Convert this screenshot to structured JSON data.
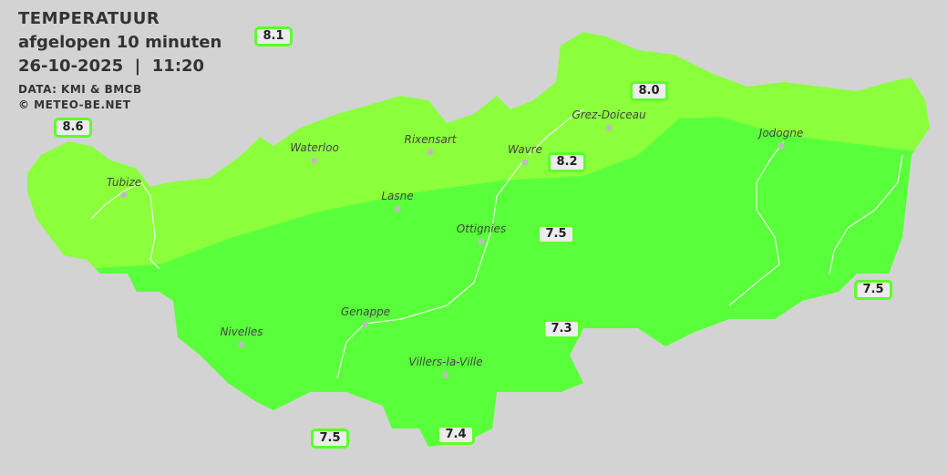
{
  "header": {
    "title": "TEMPERATUUR",
    "subtitle": "afgelopen 10 minuten",
    "datetime": "26-10-2025  |  11:20",
    "source": "DATA: KMI & BMCB",
    "copyright": "© METEO-BE.NET"
  },
  "colors": {
    "background": "#d3d3d3",
    "zone_warm": "#8cff3c",
    "zone_cool": "#5aff3c",
    "label_border": "#5cff2a"
  },
  "cities": [
    {
      "name": "Waterloo"
    },
    {
      "name": "Rixensart"
    },
    {
      "name": "Wavre"
    },
    {
      "name": "Grez-Doiceau"
    },
    {
      "name": "Jodogne"
    },
    {
      "name": "Tubize"
    },
    {
      "name": "Lasne"
    },
    {
      "name": "Ottignies"
    },
    {
      "name": "Genappe"
    },
    {
      "name": "Nivelles"
    },
    {
      "name": "Villers-la-Ville"
    }
  ],
  "stations": [
    {
      "value": "8.1"
    },
    {
      "value": "8.6"
    },
    {
      "value": "8.0"
    },
    {
      "value": "8.2"
    },
    {
      "value": "7.5"
    },
    {
      "value": "7.5"
    },
    {
      "value": "7.3"
    },
    {
      "value": "7.5"
    },
    {
      "value": "7.4"
    }
  ]
}
